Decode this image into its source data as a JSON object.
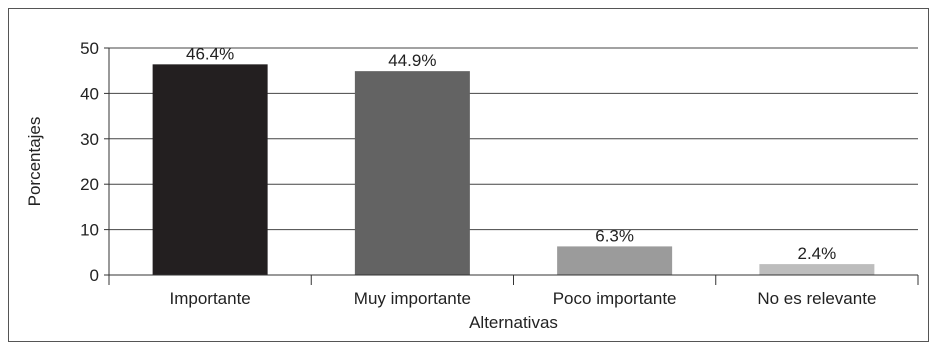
{
  "chart_data": {
    "type": "bar",
    "title": "",
    "xlabel": "Alternativas",
    "ylabel": "Porcentajes",
    "ylim": [
      0,
      50
    ],
    "yticks": [
      0,
      10,
      20,
      30,
      40,
      50
    ],
    "grid": true,
    "legend": "none",
    "categories": [
      "Importante",
      "Muy importante",
      "Poco importante",
      "No es relevante"
    ],
    "values": [
      46.4,
      44.9,
      6.3,
      2.4
    ],
    "data_labels": [
      "46.4%",
      "44.9%",
      "6.3%",
      "2.4%"
    ],
    "bar_colors": [
      "#231f20",
      "#636363",
      "#9b9b9b",
      "#bdbdbd"
    ]
  }
}
